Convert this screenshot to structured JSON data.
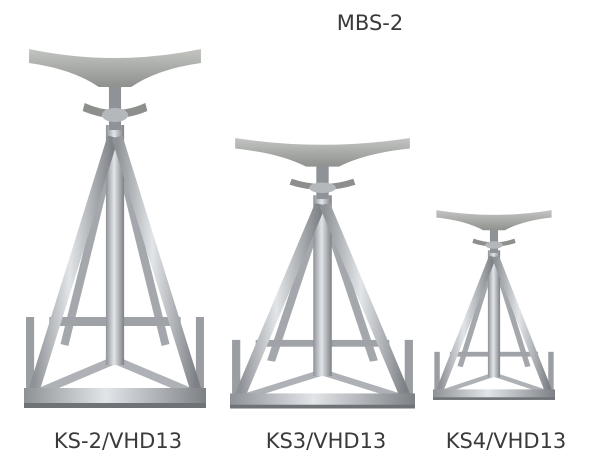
{
  "top_label": "MBS-2",
  "products": [
    {
      "label": "KS-2/VHD13"
    },
    {
      "label": "KS3/VHD13"
    },
    {
      "label": "KS4/VHD13"
    }
  ]
}
